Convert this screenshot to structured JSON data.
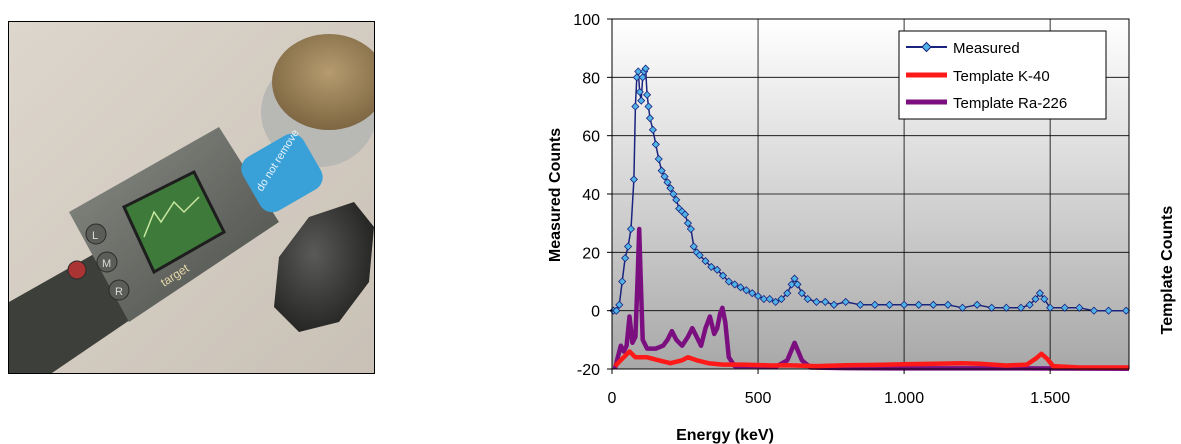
{
  "photo": {
    "description_label": "",
    "device_screen_text": "target",
    "sticker_text": "do not remove",
    "button_labels": [
      "L",
      "M",
      "R"
    ]
  },
  "chart_data": {
    "type": "line",
    "title": "",
    "xlabel": "Energy (keV)",
    "ylabel": "Measured Counts",
    "y2label": "Template Counts",
    "xlim": [
      0,
      1770
    ],
    "ylim": [
      -20,
      100
    ],
    "x_ticks": [
      0,
      500,
      1000,
      1500
    ],
    "x_tick_labels": [
      "0",
      "500",
      "1.000",
      "1.500"
    ],
    "y_ticks": [
      -20,
      0,
      20,
      40,
      60,
      80,
      100
    ],
    "y_tick_labels": [
      "-20",
      "0",
      "20",
      "40",
      "60",
      "80",
      "100"
    ],
    "grid": true,
    "legend_placement": "top-right",
    "series": [
      {
        "name": "Measured",
        "color": "#1a237e",
        "marker_color": "#4fb3e8",
        "marker": "diamond",
        "points": [
          [
            5,
            0
          ],
          [
            15,
            0
          ],
          [
            25,
            2
          ],
          [
            35,
            10
          ],
          [
            45,
            18
          ],
          [
            55,
            22
          ],
          [
            65,
            28
          ],
          [
            75,
            45
          ],
          [
            80,
            70
          ],
          [
            85,
            80
          ],
          [
            90,
            82
          ],
          [
            95,
            75
          ],
          [
            100,
            72
          ],
          [
            105,
            80
          ],
          [
            110,
            82
          ],
          [
            115,
            83
          ],
          [
            120,
            74
          ],
          [
            125,
            70
          ],
          [
            130,
            66
          ],
          [
            140,
            62
          ],
          [
            150,
            57
          ],
          [
            160,
            52
          ],
          [
            170,
            48
          ],
          [
            180,
            46
          ],
          [
            190,
            44
          ],
          [
            200,
            42
          ],
          [
            210,
            40
          ],
          [
            220,
            38
          ],
          [
            230,
            35
          ],
          [
            240,
            34
          ],
          [
            250,
            33
          ],
          [
            260,
            30
          ],
          [
            270,
            28
          ],
          [
            280,
            22
          ],
          [
            290,
            20
          ],
          [
            300,
            19
          ],
          [
            320,
            17
          ],
          [
            340,
            15
          ],
          [
            360,
            14
          ],
          [
            380,
            12
          ],
          [
            400,
            10
          ],
          [
            420,
            9
          ],
          [
            440,
            8
          ],
          [
            460,
            7
          ],
          [
            480,
            6
          ],
          [
            500,
            5
          ],
          [
            520,
            4
          ],
          [
            540,
            4
          ],
          [
            560,
            3
          ],
          [
            580,
            4
          ],
          [
            600,
            6
          ],
          [
            615,
            9
          ],
          [
            625,
            11
          ],
          [
            635,
            9
          ],
          [
            650,
            6
          ],
          [
            670,
            4
          ],
          [
            700,
            3
          ],
          [
            730,
            3
          ],
          [
            760,
            2
          ],
          [
            800,
            3
          ],
          [
            850,
            2
          ],
          [
            900,
            2
          ],
          [
            950,
            2
          ],
          [
            1000,
            2
          ],
          [
            1050,
            2
          ],
          [
            1100,
            2
          ],
          [
            1150,
            2
          ],
          [
            1200,
            1
          ],
          [
            1250,
            2
          ],
          [
            1300,
            1
          ],
          [
            1350,
            1
          ],
          [
            1400,
            1
          ],
          [
            1430,
            2
          ],
          [
            1450,
            4
          ],
          [
            1465,
            6
          ],
          [
            1480,
            4
          ],
          [
            1500,
            1
          ],
          [
            1550,
            1
          ],
          [
            1600,
            1
          ],
          [
            1650,
            0
          ],
          [
            1700,
            0
          ],
          [
            1760,
            0
          ]
        ]
      },
      {
        "name": "Template K-40",
        "color": "#ff1a1a",
        "points": [
          [
            10,
            -19
          ],
          [
            40,
            -16
          ],
          [
            60,
            -14
          ],
          [
            80,
            -16
          ],
          [
            120,
            -16
          ],
          [
            160,
            -17
          ],
          [
            200,
            -18
          ],
          [
            240,
            -17
          ],
          [
            260,
            -16
          ],
          [
            290,
            -17
          ],
          [
            330,
            -18
          ],
          [
            380,
            -18.5
          ],
          [
            450,
            -18.5
          ],
          [
            550,
            -18.8
          ],
          [
            600,
            -18.7
          ],
          [
            700,
            -19
          ],
          [
            800,
            -18.7
          ],
          [
            900,
            -18.6
          ],
          [
            1000,
            -18.4
          ],
          [
            1100,
            -18.2
          ],
          [
            1200,
            -18
          ],
          [
            1260,
            -18.2
          ],
          [
            1350,
            -18.8
          ],
          [
            1420,
            -18.5
          ],
          [
            1450,
            -16.5
          ],
          [
            1470,
            -14.8
          ],
          [
            1490,
            -16.5
          ],
          [
            1510,
            -19
          ],
          [
            1600,
            -19.5
          ],
          [
            1770,
            -19.5
          ]
        ]
      },
      {
        "name": "Template Ra-226",
        "color": "#7b0f80",
        "points": [
          [
            10,
            -20
          ],
          [
            20,
            -16
          ],
          [
            30,
            -12
          ],
          [
            40,
            -14
          ],
          [
            50,
            -12
          ],
          [
            60,
            -2
          ],
          [
            70,
            -11
          ],
          [
            80,
            -9
          ],
          [
            88,
            12
          ],
          [
            93,
            28
          ],
          [
            98,
            12
          ],
          [
            105,
            -10
          ],
          [
            120,
            -13
          ],
          [
            150,
            -13
          ],
          [
            175,
            -12
          ],
          [
            190,
            -10
          ],
          [
            205,
            -7
          ],
          [
            220,
            -10
          ],
          [
            240,
            -12
          ],
          [
            260,
            -9
          ],
          [
            275,
            -6
          ],
          [
            290,
            -9
          ],
          [
            305,
            -12
          ],
          [
            320,
            -6
          ],
          [
            335,
            -2
          ],
          [
            350,
            -8
          ],
          [
            360,
            -6
          ],
          [
            370,
            -1
          ],
          [
            378,
            1
          ],
          [
            388,
            -4
          ],
          [
            400,
            -16
          ],
          [
            420,
            -19
          ],
          [
            500,
            -19
          ],
          [
            560,
            -19.3
          ],
          [
            600,
            -17
          ],
          [
            625,
            -11
          ],
          [
            650,
            -17
          ],
          [
            680,
            -19.5
          ],
          [
            800,
            -19.7
          ],
          [
            1000,
            -19.8
          ],
          [
            1400,
            -19.8
          ],
          [
            1770,
            -19.9
          ]
        ]
      }
    ]
  }
}
